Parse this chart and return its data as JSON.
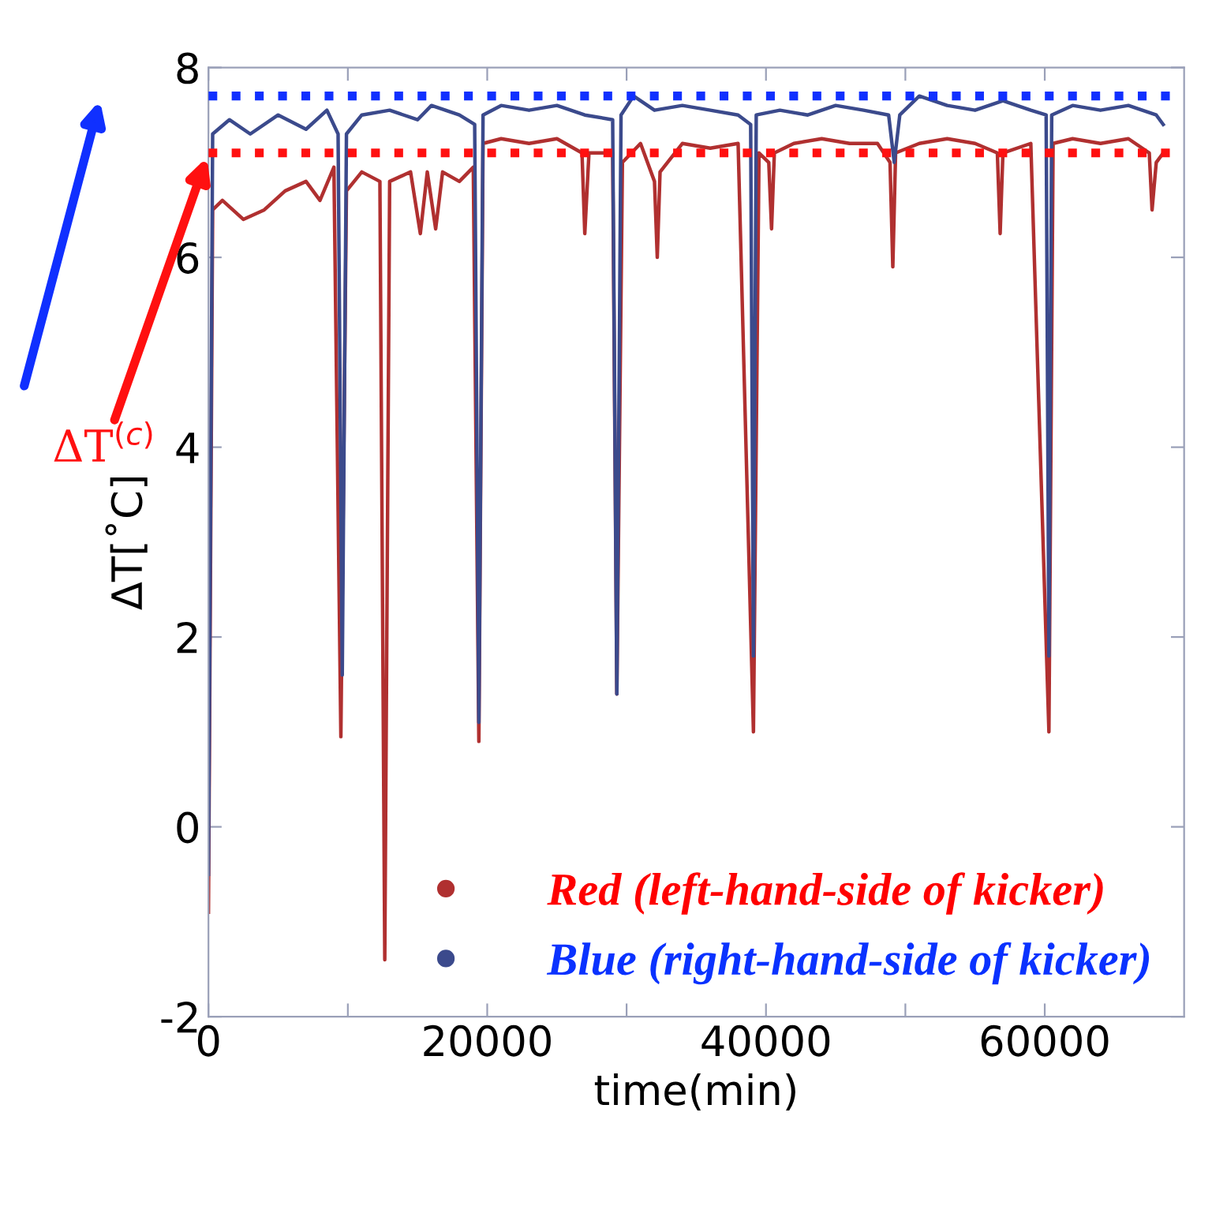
{
  "chart_data": {
    "type": "line",
    "xlabel": "time(min)",
    "ylabel": "ΔT[˚C]",
    "xlim": [
      0,
      70000
    ],
    "ylim": [
      -2,
      8
    ],
    "xticks": [
      0,
      {
        "value": 10000,
        "label": null
      },
      20000,
      {
        "value": 30000,
        "label": null
      },
      40000,
      {
        "value": 50000,
        "label": null
      },
      60000
    ],
    "yticks": [
      -2,
      0,
      2,
      4,
      6,
      8
    ],
    "grid": false,
    "legend": "bottom right",
    "marker": "none",
    "line_style": "solid",
    "series": [
      {
        "name": "Red (left-hand-side of kicker)",
        "color": "#b03030",
        "x": [
          0,
          300,
          1000,
          2500,
          4000,
          5500,
          7000,
          8000,
          9000,
          9500,
          9900,
          11000,
          12300,
          12650,
          13000,
          14500,
          15200,
          15700,
          16300,
          16800,
          18000,
          19000,
          19400,
          19700,
          21000,
          23000,
          25000,
          26800,
          27000,
          27300,
          29000,
          29300,
          29700,
          31000,
          32000,
          32200,
          32400,
          34000,
          36000,
          38000,
          39100,
          39500,
          40200,
          40400,
          40600,
          42000,
          44000,
          46000,
          48000,
          48900,
          49100,
          49300,
          51000,
          53000,
          55000,
          56600,
          56800,
          57000,
          59000,
          60300,
          60600,
          62000,
          64000,
          66000,
          67500,
          67700,
          68000,
          68500
        ],
        "values": [
          -0.9,
          6.5,
          6.6,
          6.4,
          6.5,
          6.7,
          6.8,
          6.6,
          6.95,
          0.95,
          6.7,
          6.9,
          6.8,
          -1.4,
          6.8,
          6.9,
          6.25,
          6.9,
          6.3,
          6.9,
          6.8,
          6.95,
          0.9,
          7.2,
          7.25,
          7.2,
          7.25,
          7.1,
          6.25,
          7.1,
          7.1,
          1.4,
          7.0,
          7.2,
          6.8,
          6.0,
          6.9,
          7.2,
          7.15,
          7.2,
          1.0,
          7.1,
          7.0,
          6.3,
          7.1,
          7.2,
          7.25,
          7.2,
          7.2,
          7.0,
          5.9,
          7.1,
          7.2,
          7.25,
          7.2,
          7.1,
          6.25,
          7.1,
          7.2,
          1.0,
          7.2,
          7.25,
          7.2,
          7.25,
          7.1,
          6.5,
          7.0,
          7.1
        ]
      },
      {
        "name": "Blue (right-hand-side of kicker)",
        "color": "#3b4a8c",
        "x": [
          0,
          300,
          1500,
          3000,
          5000,
          7000,
          8500,
          9300,
          9600,
          9900,
          11000,
          13000,
          15000,
          16000,
          18000,
          19100,
          19400,
          19700,
          21000,
          23000,
          25000,
          27000,
          29000,
          29300,
          29600,
          30500,
          32000,
          34000,
          36000,
          38000,
          38900,
          39100,
          39300,
          41000,
          43000,
          45000,
          47000,
          48800,
          49200,
          49600,
          51000,
          53000,
          55000,
          57000,
          59000,
          60100,
          60300,
          60500,
          62000,
          64000,
          66000,
          68000,
          68500
        ],
        "values": [
          -0.5,
          7.3,
          7.45,
          7.3,
          7.5,
          7.35,
          7.55,
          7.3,
          1.6,
          7.3,
          7.5,
          7.55,
          7.45,
          7.6,
          7.5,
          7.4,
          1.1,
          7.5,
          7.6,
          7.55,
          7.6,
          7.5,
          7.45,
          1.4,
          7.5,
          7.7,
          7.55,
          7.6,
          7.55,
          7.5,
          7.4,
          1.8,
          7.5,
          7.55,
          7.5,
          7.6,
          7.55,
          7.5,
          7.0,
          7.5,
          7.7,
          7.6,
          7.55,
          7.65,
          7.55,
          7.5,
          1.8,
          7.5,
          7.6,
          7.55,
          7.6,
          7.5,
          7.4
        ]
      }
    ],
    "ref_lines": [
      {
        "axis": "y",
        "value": 7.7,
        "label": null,
        "color": "#1030ff",
        "line_style": "dotted"
      },
      {
        "axis": "y",
        "value": 7.1,
        "label": "ΔT$^{(c)}$",
        "color": "#ff1010",
        "line_style": "dotted"
      }
    ]
  }
}
